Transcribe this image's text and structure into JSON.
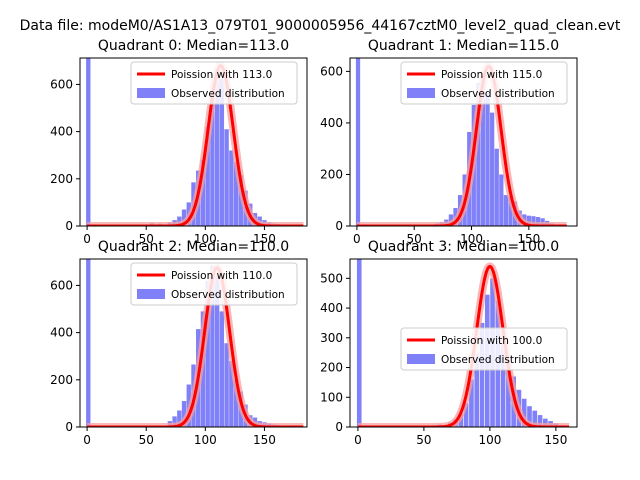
{
  "figure": {
    "suptitle": "Data file: modeM0/AS1A13_079T01_9000005956_44167cztM0_level2_quad_clean.evt"
  },
  "colors": {
    "histogram": "#8080f8",
    "poisson": "#ff0000",
    "poisson_glow": "#f5a0a0"
  },
  "chart_data": [
    {
      "type": "bar",
      "title": "Quadrant 0: Median=113.0",
      "xlim": [
        -6,
        186
      ],
      "ylim": [
        0,
        712
      ],
      "xticks": [
        0,
        50,
        100,
        150
      ],
      "yticks": [
        0,
        200,
        400,
        600
      ],
      "legend_position": "upper right",
      "series": [
        {
          "name": "Poission with 113.0",
          "kind": "line",
          "mean": 113.0,
          "peak": 680,
          "x_range": [
            0,
            183
          ]
        },
        {
          "name": "Observed distribution",
          "kind": "histogram",
          "bin_width": 3.7,
          "x": [
            1,
            37,
            55,
            62,
            70,
            74,
            78,
            82,
            86,
            90,
            94,
            98,
            102,
            106,
            110,
            114,
            118,
            122,
            126,
            130,
            134,
            138,
            142,
            146,
            150,
            154,
            158,
            162,
            166,
            170,
            174,
            178,
            182
          ],
          "values": [
            712,
            5,
            12,
            10,
            15,
            25,
            40,
            70,
            100,
            185,
            235,
            280,
            420,
            565,
            655,
            625,
            410,
            320,
            270,
            215,
            150,
            95,
            55,
            40,
            25,
            15,
            10,
            8,
            6,
            5,
            4,
            3,
            2
          ]
        }
      ]
    },
    {
      "type": "bar",
      "title": "Quadrant 1: Median=115.0",
      "xlim": [
        -6,
        192
      ],
      "ylim": [
        0,
        652
      ],
      "xticks": [
        0,
        50,
        100,
        150
      ],
      "yticks": [
        0,
        200,
        400,
        600
      ],
      "legend_position": "upper right",
      "series": [
        {
          "name": "Poission with 115.0",
          "kind": "line",
          "mean": 115.0,
          "peak": 620,
          "x_range": [
            0,
            183
          ]
        },
        {
          "name": "Observed distribution",
          "kind": "histogram",
          "bin_width": 3.7,
          "x": [
            1,
            62,
            70,
            74,
            78,
            82,
            86,
            90,
            94,
            98,
            102,
            106,
            110,
            114,
            118,
            122,
            126,
            130,
            134,
            138,
            142,
            146,
            150,
            154,
            158,
            162,
            166,
            170,
            174
          ],
          "values": [
            652,
            5,
            10,
            15,
            25,
            45,
            70,
            120,
            200,
            365,
            470,
            555,
            600,
            515,
            440,
            300,
            200,
            120,
            115,
            95,
            60,
            45,
            40,
            38,
            35,
            30,
            20,
            10,
            5
          ]
        }
      ]
    },
    {
      "type": "bar",
      "title": "Quadrant 2: Median=110.0",
      "xlim": [
        -6,
        186
      ],
      "ylim": [
        0,
        712
      ],
      "xticks": [
        0,
        50,
        100,
        150
      ],
      "yticks": [
        0,
        200,
        400,
        600
      ],
      "legend_position": "upper right",
      "series": [
        {
          "name": "Poission with 110.0",
          "kind": "line",
          "mean": 110.0,
          "peak": 675,
          "x_range": [
            0,
            183
          ]
        },
        {
          "name": "Observed distribution",
          "kind": "histogram",
          "bin_width": 3.7,
          "x": [
            1,
            62,
            70,
            74,
            78,
            82,
            86,
            90,
            94,
            98,
            102,
            106,
            110,
            114,
            118,
            122,
            126,
            130,
            134,
            138,
            142,
            146,
            150,
            154,
            158,
            162,
            166,
            170,
            174
          ],
          "values": [
            712,
            5,
            25,
            45,
            70,
            110,
            180,
            265,
            415,
            490,
            620,
            685,
            640,
            490,
            355,
            280,
            200,
            150,
            95,
            50,
            40,
            25,
            20,
            15,
            10,
            8,
            6,
            5,
            3
          ]
        }
      ]
    },
    {
      "type": "bar",
      "title": "Quadrant 3: Median=100.0",
      "xlim": [
        -6,
        166
      ],
      "ylim": [
        0,
        565
      ],
      "xticks": [
        0,
        50,
        100,
        150
      ],
      "yticks": [
        0,
        100,
        200,
        300,
        400,
        500
      ],
      "legend_position": "center right",
      "series": [
        {
          "name": "Poission with 100.0",
          "kind": "line",
          "mean": 100.0,
          "peak": 540,
          "x_range": [
            0,
            160
          ]
        },
        {
          "name": "Observed distribution",
          "kind": "histogram",
          "bin_width": 3.5,
          "x": [
            1,
            24,
            38,
            55,
            62,
            70,
            74,
            78,
            82,
            86,
            90,
            94,
            98,
            102,
            106,
            110,
            114,
            118,
            122,
            126,
            130,
            134,
            138,
            142,
            146,
            150,
            154
          ],
          "values": [
            565,
            5,
            5,
            5,
            8,
            15,
            25,
            45,
            80,
            160,
            245,
            350,
            445,
            500,
            425,
            310,
            240,
            170,
            125,
            95,
            70,
            55,
            40,
            28,
            20,
            12,
            6
          ]
        }
      ]
    }
  ]
}
